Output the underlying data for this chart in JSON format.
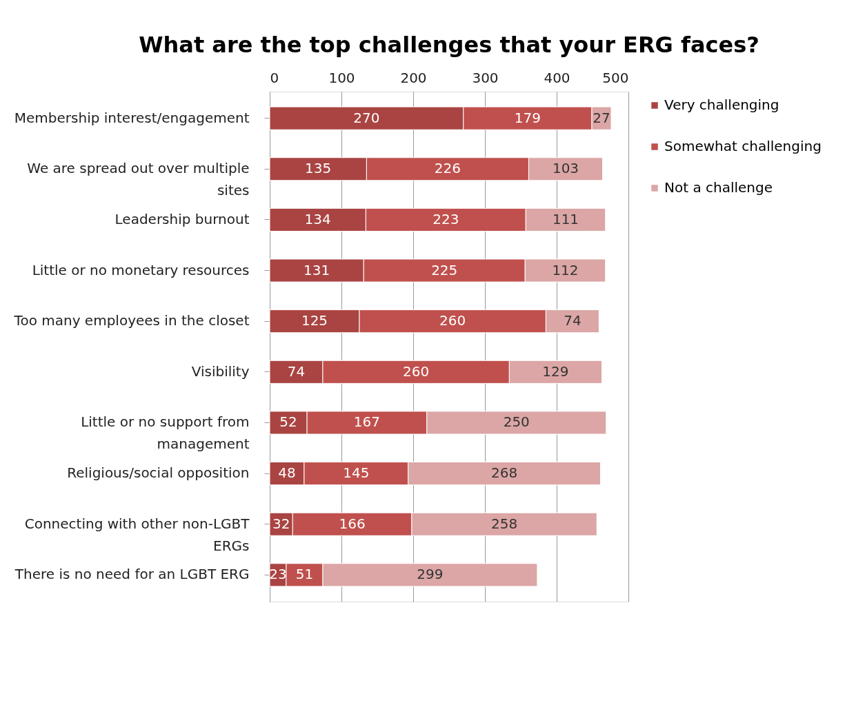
{
  "chart_data": {
    "type": "bar",
    "orientation": "horizontal",
    "stacked": true,
    "title": "What are the top challenges that your ERG faces?",
    "categories": [
      "Membership interest/engagement",
      "We are spread out over multiple sites",
      "Leadership burnout",
      "Little or no monetary resources",
      "Too many employees in the closet",
      "Visibility",
      "Little or no support from management",
      "Religious/social opposition",
      "Connecting with other non-LGBT ERGs",
      "There is no need for an LGBT ERG"
    ],
    "series": [
      {
        "name": "Very challenging",
        "color": "#a94442",
        "values": [
          270,
          135,
          134,
          131,
          125,
          74,
          52,
          48,
          32,
          23
        ]
      },
      {
        "name": "Somewhat challenging",
        "color": "#c0504d",
        "values": [
          179,
          226,
          223,
          225,
          260,
          260,
          167,
          145,
          166,
          51
        ]
      },
      {
        "name": "Not a challenge",
        "color": "#dba6a5",
        "values": [
          27,
          103,
          111,
          112,
          74,
          129,
          250,
          268,
          258,
          299
        ]
      }
    ],
    "xlim": [
      0,
      500
    ],
    "xticks": [
      0,
      100,
      200,
      300,
      400,
      500
    ],
    "grid": "x",
    "legend": "right",
    "data_labels": true
  }
}
